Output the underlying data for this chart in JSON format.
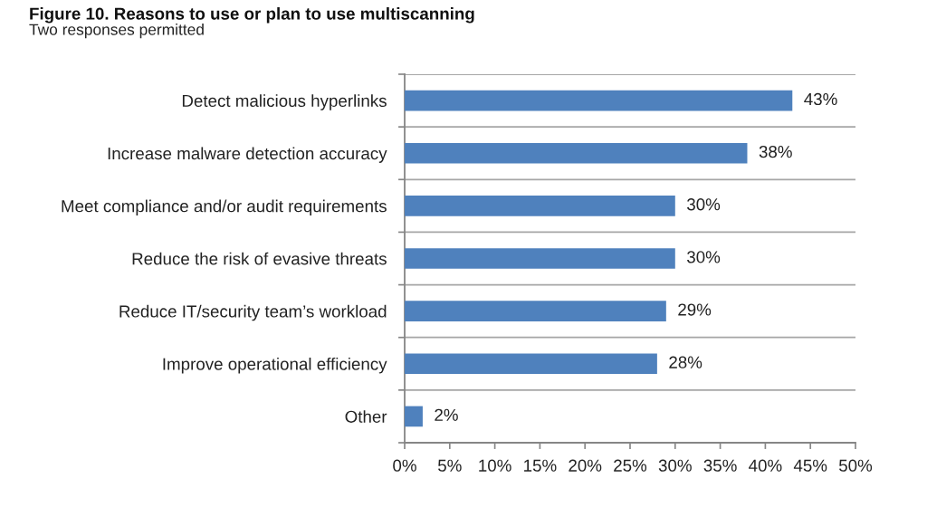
{
  "chart_data": {
    "type": "bar",
    "orientation": "horizontal",
    "title": "Figure 10. Reasons to use or plan to use multiscanning",
    "subtitle": "Two responses permitted",
    "categories": [
      "Detect malicious hyperlinks",
      "Increase malware detection accuracy",
      "Meet compliance and/or audit requirements",
      "Reduce the risk of evasive threats",
      "Reduce IT/security team’s workload",
      "Improve operational efficiency",
      "Other"
    ],
    "values": [
      43,
      38,
      30,
      30,
      29,
      28,
      2
    ],
    "color": "#4f81bd",
    "value_labels": [
      "43%",
      "38%",
      "30%",
      "30%",
      "29%",
      "28%",
      "2%"
    ],
    "xlim": [
      0,
      50
    ],
    "xticks": [
      {
        "value": 0,
        "label": "0%"
      },
      {
        "value": 5,
        "label": "5%"
      },
      {
        "value": 10,
        "label": "10%"
      },
      {
        "value": 15,
        "label": "15%"
      },
      {
        "value": 20,
        "label": "20%"
      },
      {
        "value": 25,
        "label": "25%"
      },
      {
        "value": 30,
        "label": "30%"
      },
      {
        "value": 35,
        "label": "35%"
      },
      {
        "value": 40,
        "label": "40%"
      },
      {
        "value": 45,
        "label": "45%"
      },
      {
        "value": 50,
        "label": "50%"
      }
    ],
    "grid": "y"
  }
}
